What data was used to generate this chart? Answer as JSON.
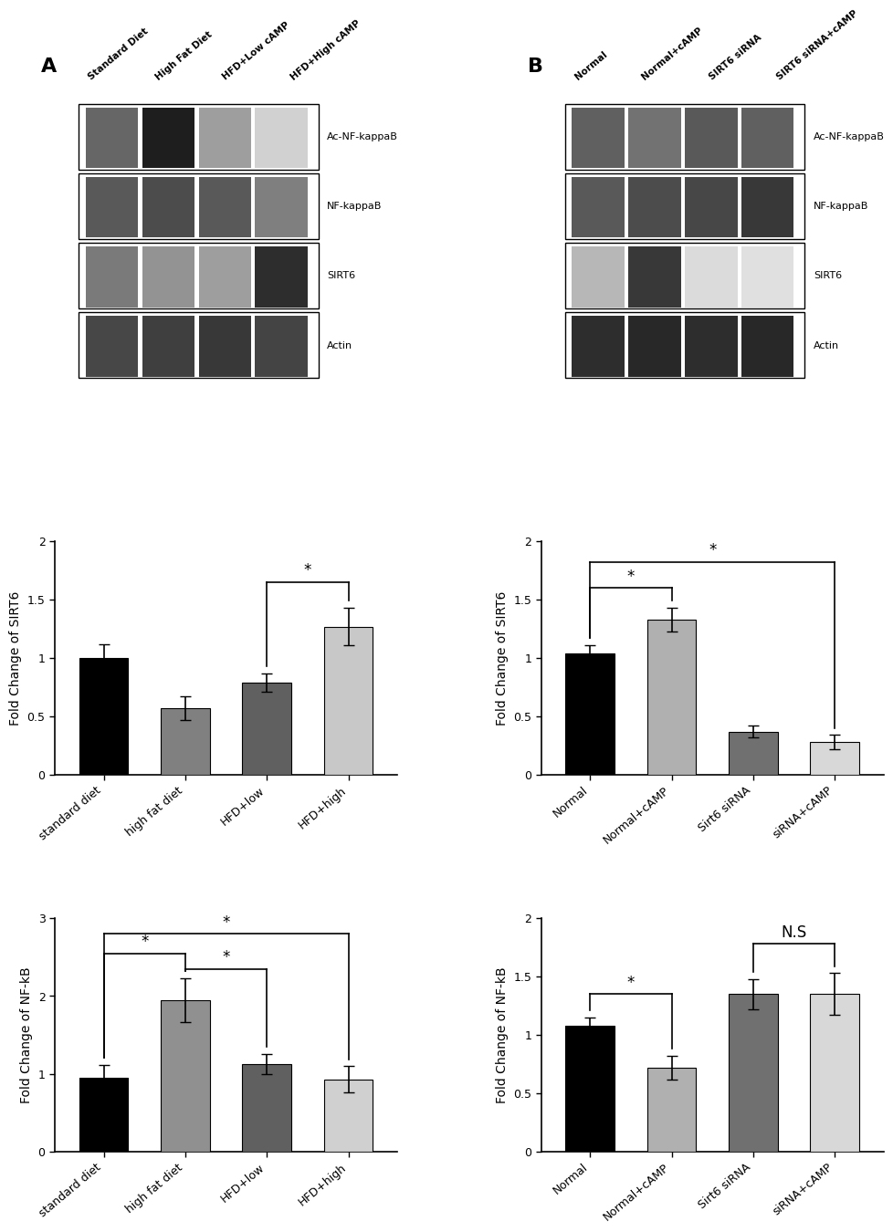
{
  "panel_A_blot_labels": [
    "Ac-NF-kappaB",
    "NF-kappaB",
    "SIRT6",
    "Actin"
  ],
  "panel_B_blot_labels": [
    "Ac-NF-kappaB",
    "NF-kappaB",
    "SIRT6",
    "Actin"
  ],
  "panel_A_col_labels": [
    "Standard Diet",
    "High Fat Diet",
    "HFD+Low cAMP",
    "HFD+High cAMP"
  ],
  "panel_B_col_labels": [
    "Normal",
    "Normal+cAMP",
    "SIRT6 siRNA",
    "SIRT6 siRNA+cAMP"
  ],
  "A_SIRT6_values": [
    1.0,
    0.57,
    0.79,
    1.27
  ],
  "A_SIRT6_errors": [
    0.12,
    0.1,
    0.08,
    0.16
  ],
  "A_SIRT6_ylim": [
    0.0,
    2.0
  ],
  "A_SIRT6_yticks": [
    0.0,
    0.5,
    1.0,
    1.5,
    2.0
  ],
  "A_SIRT6_ylabel": "Fold Change of SIRT6",
  "A_SIRT6_xticklabels": [
    "standard diet",
    "high fat diet",
    "HFD+low",
    "HFD+high"
  ],
  "A_SIRT6_bar_colors": [
    "#000000",
    "#808080",
    "#606060",
    "#c8c8c8"
  ],
  "A_NFkB_values": [
    0.95,
    1.95,
    1.13,
    0.93
  ],
  "A_NFkB_errors": [
    0.17,
    0.28,
    0.13,
    0.17
  ],
  "A_NFkB_ylim": [
    0.0,
    3.0
  ],
  "A_NFkB_yticks": [
    0,
    1,
    2,
    3
  ],
  "A_NFkB_ylabel": "Fold Change of NF-kB",
  "A_NFkB_xticklabels": [
    "standard diet",
    "high fat diet",
    "HFD+low",
    "HFD+high"
  ],
  "A_NFkB_bar_colors": [
    "#000000",
    "#909090",
    "#606060",
    "#d0d0d0"
  ],
  "B_SIRT6_values": [
    1.04,
    1.33,
    0.37,
    0.28
  ],
  "B_SIRT6_errors": [
    0.07,
    0.1,
    0.05,
    0.06
  ],
  "B_SIRT6_ylim": [
    0.0,
    2.0
  ],
  "B_SIRT6_yticks": [
    0.0,
    0.5,
    1.0,
    1.5,
    2.0
  ],
  "B_SIRT6_ylabel": "Fold Change of SIRT6",
  "B_SIRT6_xticklabels": [
    "Normal",
    "Normal+cAMP",
    "Sirt6 siRNA",
    "siRNA+cAMP"
  ],
  "B_SIRT6_bar_colors": [
    "#000000",
    "#b0b0b0",
    "#707070",
    "#d8d8d8"
  ],
  "B_NFkB_values": [
    1.08,
    0.72,
    1.35,
    1.35
  ],
  "B_NFkB_errors": [
    0.07,
    0.1,
    0.13,
    0.18
  ],
  "B_NFkB_ylim": [
    0.0,
    2.0
  ],
  "B_NFkB_yticks": [
    0.0,
    0.5,
    1.0,
    1.5,
    2.0
  ],
  "B_NFkB_ylabel": "Fold Change of NF-kB",
  "B_NFkB_xticklabels": [
    "Normal",
    "Normal+cAMP",
    "Sirt6 siRNA",
    "siRNA+cAMP"
  ],
  "B_NFkB_bar_colors": [
    "#000000",
    "#b0b0b0",
    "#707070",
    "#d8d8d8"
  ],
  "background_color": "#ffffff",
  "tick_fontsize": 9,
  "label_fontsize": 10,
  "bar_width": 0.6
}
